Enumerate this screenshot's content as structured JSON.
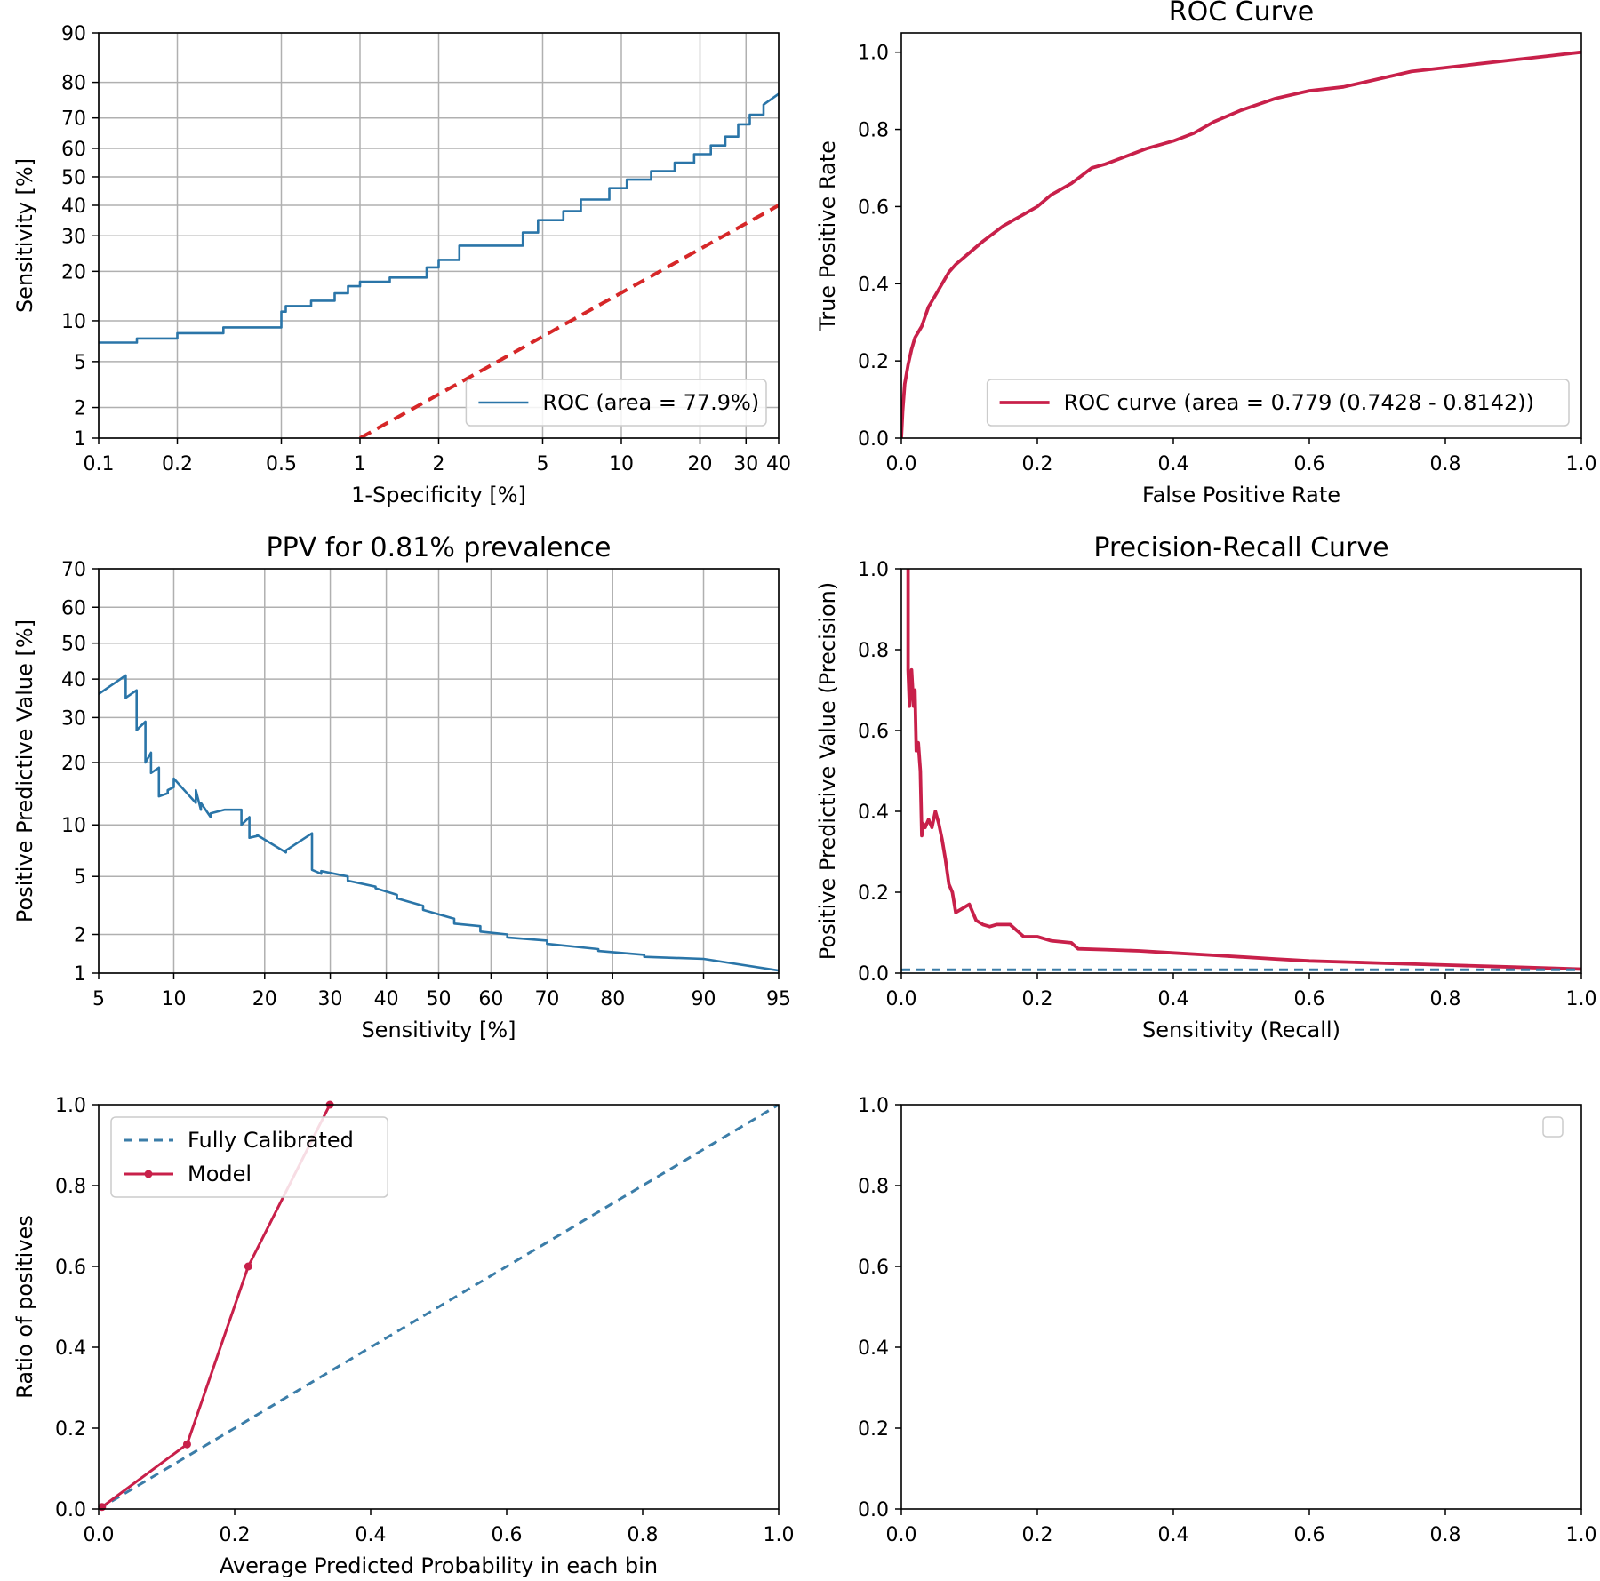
{
  "colors": {
    "blue": "#2a75a8",
    "red": "#c8204a",
    "red_dashed": "#d62728",
    "grid": "#b0b0b0",
    "calib_dashed": "#3b7da8"
  },
  "chart_data": [
    {
      "id": "tl",
      "type": "line",
      "title": "",
      "xlabel": "1-Specificity [%]",
      "ylabel": "Sensitivity [%]",
      "xscale": "log",
      "yscale": "probit",
      "xlim": [
        0.1,
        40
      ],
      "ylim": [
        1,
        90
      ],
      "grid": true,
      "xticks": [
        0.1,
        0.2,
        0.5,
        1,
        2,
        5,
        10,
        20,
        30,
        40
      ],
      "xticklabels": [
        "0.1",
        "0.2",
        "0.5",
        "1",
        "2",
        "5",
        "10",
        "20",
        "30",
        "40"
      ],
      "yticks": [
        1,
        2,
        5,
        10,
        20,
        30,
        40,
        50,
        60,
        70,
        80,
        90
      ],
      "yticklabels": [
        "1",
        "2",
        "5",
        "10",
        "20",
        "30",
        "40",
        "50",
        "60",
        "70",
        "80",
        "90"
      ],
      "legend": {
        "placement": "lower-right",
        "entries": [
          "ROC (area = 77.9%)"
        ]
      },
      "series": [
        {
          "name": "ROC (area = 77.9%)",
          "style": "solid-blue-step",
          "x": [
            0.1,
            0.14,
            0.14,
            0.2,
            0.2,
            0.3,
            0.3,
            0.35,
            0.35,
            0.5,
            0.5,
            0.52,
            0.52,
            0.65,
            0.65,
            0.8,
            0.8,
            0.9,
            0.9,
            1.0,
            1.0,
            1.3,
            1.3,
            1.8,
            1.8,
            2.0,
            2.0,
            2.4,
            2.4,
            3.2,
            3.2,
            4.2,
            4.2,
            4.8,
            4.8,
            6.0,
            6.0,
            7.0,
            7.0,
            9.0,
            9.0,
            10.5,
            10.5,
            13.0,
            13.0,
            16.0,
            16.0,
            19.0,
            19.0,
            22.0,
            22.0,
            25.0,
            25.0,
            28.0,
            28.0,
            31.0,
            31.0,
            35.0,
            35.0,
            40.0
          ],
          "y": [
            7.0,
            7.0,
            7.5,
            7.5,
            8.2,
            8.2,
            9.0,
            9.0,
            9.0,
            9.0,
            11.5,
            11.5,
            12.5,
            12.5,
            13.5,
            13.5,
            15.0,
            15.0,
            16.5,
            16.5,
            17.5,
            17.5,
            18.5,
            18.5,
            21.0,
            21.0,
            23.0,
            23.0,
            27.0,
            27.0,
            27.0,
            27.0,
            31.0,
            31.0,
            35.0,
            35.0,
            38.0,
            38.0,
            42.0,
            42.0,
            46.0,
            46.0,
            49.0,
            49.0,
            52.0,
            52.0,
            55.0,
            55.0,
            58.0,
            58.0,
            61.0,
            61.0,
            64.0,
            64.0,
            68.0,
            68.0,
            71.0,
            71.0,
            74.0,
            77.0
          ]
        },
        {
          "name": "",
          "style": "dashed-red",
          "x": [
            1,
            40
          ],
          "y": [
            1,
            40
          ]
        }
      ]
    },
    {
      "id": "tr",
      "type": "line",
      "title": "ROC Curve",
      "xlabel": "False Positive Rate",
      "ylabel": "True Positive Rate",
      "xlim": [
        0,
        1
      ],
      "ylim": [
        0,
        1.05
      ],
      "grid": false,
      "xticks": [
        0,
        0.2,
        0.4,
        0.6,
        0.8,
        1.0
      ],
      "xticklabels": [
        "0.0",
        "0.2",
        "0.4",
        "0.6",
        "0.8",
        "1.0"
      ],
      "yticks": [
        0,
        0.2,
        0.4,
        0.6,
        0.8,
        1.0
      ],
      "yticklabels": [
        "0.0",
        "0.2",
        "0.4",
        "0.6",
        "0.8",
        "1.0"
      ],
      "legend": {
        "placement": "lower-right",
        "entries": [
          "ROC curve (area = 0.779 (0.7428 - 0.8142))"
        ]
      },
      "series": [
        {
          "name": "ROC curve (area = 0.779 (0.7428 - 0.8142))",
          "style": "solid-red",
          "x": [
            0.0,
            0.002,
            0.005,
            0.01,
            0.015,
            0.02,
            0.03,
            0.04,
            0.05,
            0.06,
            0.07,
            0.08,
            0.1,
            0.12,
            0.15,
            0.18,
            0.2,
            0.22,
            0.25,
            0.28,
            0.3,
            0.33,
            0.36,
            0.4,
            0.43,
            0.46,
            0.5,
            0.55,
            0.6,
            0.65,
            0.7,
            0.75,
            0.8,
            0.85,
            0.9,
            0.95,
            1.0
          ],
          "y": [
            0.0,
            0.07,
            0.14,
            0.19,
            0.23,
            0.26,
            0.29,
            0.34,
            0.37,
            0.4,
            0.43,
            0.45,
            0.48,
            0.51,
            0.55,
            0.58,
            0.6,
            0.63,
            0.66,
            0.7,
            0.71,
            0.73,
            0.75,
            0.77,
            0.79,
            0.82,
            0.85,
            0.88,
            0.9,
            0.91,
            0.93,
            0.95,
            0.96,
            0.97,
            0.98,
            0.99,
            1.0
          ]
        }
      ]
    },
    {
      "id": "ml",
      "type": "line",
      "title": "PPV for 0.81% prevalence",
      "xlabel": "Sensitivity [%]",
      "ylabel": "Positive Predictive Value [%]",
      "xscale": "probit",
      "yscale": "probit",
      "xlim": [
        5,
        95
      ],
      "ylim": [
        1,
        70
      ],
      "grid": true,
      "xticks": [
        5,
        10,
        20,
        30,
        40,
        50,
        60,
        70,
        80,
        90,
        95
      ],
      "xticklabels": [
        "5",
        "10",
        "20",
        "30",
        "40",
        "50",
        "60",
        "70",
        "80",
        "90",
        "95"
      ],
      "yticks": [
        1,
        2,
        5,
        10,
        20,
        30,
        40,
        50,
        60,
        70
      ],
      "yticklabels": [
        "1",
        "2",
        "5",
        "10",
        "20",
        "30",
        "40",
        "50",
        "60",
        "70"
      ],
      "series": [
        {
          "name": "",
          "style": "solid-blue",
          "x": [
            5,
            6.5,
            6.5,
            7.2,
            7.2,
            7.8,
            7.8,
            8.2,
            8.2,
            8.8,
            8.8,
            9.5,
            9.5,
            10.0,
            10.0,
            12.0,
            12.0,
            12.5,
            12.5,
            13.5,
            13.5,
            15.0,
            15.0,
            17.0,
            17.0,
            18.0,
            18.0,
            19.0,
            19.0,
            23.0,
            23.0,
            27.0,
            27.0,
            28.5,
            28.5,
            33.0,
            33.0,
            38.0,
            38.0,
            42.0,
            42.0,
            47.0,
            47.0,
            53.0,
            53.0,
            58.0,
            58.0,
            63.0,
            63.0,
            70.0,
            70.0,
            78.0,
            78.0,
            84.0,
            84.0,
            90.0,
            95.0
          ],
          "y": [
            36,
            41,
            35,
            37,
            27,
            29,
            20,
            22,
            18,
            19,
            14,
            14.5,
            15,
            15.5,
            17,
            13,
            15,
            12,
            13,
            11,
            11.5,
            12,
            12,
            12,
            10,
            11,
            8.5,
            8.7,
            8.8,
            7.0,
            7.2,
            9.0,
            5.5,
            5.2,
            5.4,
            5.0,
            4.7,
            4.3,
            4.2,
            3.8,
            3.6,
            3.2,
            3.0,
            2.6,
            2.4,
            2.3,
            2.1,
            2.0,
            1.9,
            1.8,
            1.7,
            1.55,
            1.5,
            1.4,
            1.35,
            1.3,
            1.05
          ]
        }
      ]
    },
    {
      "id": "mr",
      "type": "line",
      "title": "Precision-Recall Curve",
      "xlabel": "Sensitivity (Recall)",
      "ylabel": "Positive Predictive Value (Precision)",
      "xlim": [
        0,
        1
      ],
      "ylim": [
        0,
        1
      ],
      "grid": false,
      "xticks": [
        0,
        0.2,
        0.4,
        0.6,
        0.8,
        1.0
      ],
      "xticklabels": [
        "0.0",
        "0.2",
        "0.4",
        "0.6",
        "0.8",
        "1.0"
      ],
      "yticks": [
        0,
        0.2,
        0.4,
        0.6,
        0.8,
        1.0
      ],
      "yticklabels": [
        "0.0",
        "0.2",
        "0.4",
        "0.6",
        "0.8",
        "1.0"
      ],
      "series": [
        {
          "name": "",
          "style": "solid-red",
          "x": [
            0.01,
            0.01,
            0.012,
            0.015,
            0.018,
            0.02,
            0.022,
            0.025,
            0.028,
            0.03,
            0.032,
            0.035,
            0.04,
            0.045,
            0.05,
            0.055,
            0.06,
            0.065,
            0.07,
            0.075,
            0.08,
            0.09,
            0.1,
            0.11,
            0.12,
            0.13,
            0.14,
            0.16,
            0.18,
            0.2,
            0.22,
            0.25,
            0.26,
            0.3,
            0.35,
            0.4,
            0.45,
            0.5,
            0.55,
            0.6,
            0.7,
            0.8,
            0.9,
            1.0
          ],
          "y": [
            1.0,
            0.75,
            0.66,
            0.75,
            0.66,
            0.7,
            0.55,
            0.57,
            0.5,
            0.34,
            0.37,
            0.36,
            0.38,
            0.36,
            0.4,
            0.37,
            0.33,
            0.28,
            0.22,
            0.2,
            0.15,
            0.16,
            0.17,
            0.13,
            0.12,
            0.115,
            0.12,
            0.12,
            0.09,
            0.09,
            0.08,
            0.075,
            0.06,
            0.058,
            0.055,
            0.05,
            0.045,
            0.04,
            0.035,
            0.03,
            0.025,
            0.02,
            0.015,
            0.01
          ]
        },
        {
          "name": "",
          "style": "dashed-blue",
          "x": [
            0,
            1
          ],
          "y": [
            0.0081,
            0.0081
          ]
        }
      ]
    },
    {
      "id": "bl",
      "type": "line",
      "title": "",
      "xlabel": "Average Predicted Probability in each bin",
      "ylabel": "Ratio of positives",
      "xlim": [
        0,
        1
      ],
      "ylim": [
        0,
        1
      ],
      "grid": false,
      "xticks": [
        0,
        0.2,
        0.4,
        0.6,
        0.8,
        1.0
      ],
      "xticklabels": [
        "0.0",
        "0.2",
        "0.4",
        "0.6",
        "0.8",
        "1.0"
      ],
      "yticks": [
        0,
        0.2,
        0.4,
        0.6,
        0.8,
        1.0
      ],
      "yticklabels": [
        "0.0",
        "0.2",
        "0.4",
        "0.6",
        "0.8",
        "1.0"
      ],
      "legend": {
        "placement": "upper-left",
        "entries": [
          "Fully Calibrated",
          "Model"
        ]
      },
      "series": [
        {
          "name": "Fully Calibrated",
          "style": "dashed-blue",
          "x": [
            0,
            1
          ],
          "y": [
            0,
            1
          ]
        },
        {
          "name": "Model",
          "style": "solid-red-marker",
          "x": [
            0.005,
            0.13,
            0.22,
            0.34
          ],
          "y": [
            0.005,
            0.16,
            0.6,
            1.0
          ]
        }
      ]
    },
    {
      "id": "br",
      "type": "line",
      "title": "",
      "xlabel": "",
      "ylabel": "",
      "xlim": [
        0,
        1
      ],
      "ylim": [
        0,
        1
      ],
      "grid": false,
      "xticks": [
        0,
        0.2,
        0.4,
        0.6,
        0.8,
        1.0
      ],
      "xticklabels": [
        "0.0",
        "0.2",
        "0.4",
        "0.6",
        "0.8",
        "1.0"
      ],
      "yticks": [
        0,
        0.2,
        0.4,
        0.6,
        0.8,
        1.0
      ],
      "yticklabels": [
        "0.0",
        "0.2",
        "0.4",
        "0.6",
        "0.8",
        "1.0"
      ],
      "legend": {
        "placement": "upper-right",
        "entries": []
      },
      "series": []
    }
  ]
}
